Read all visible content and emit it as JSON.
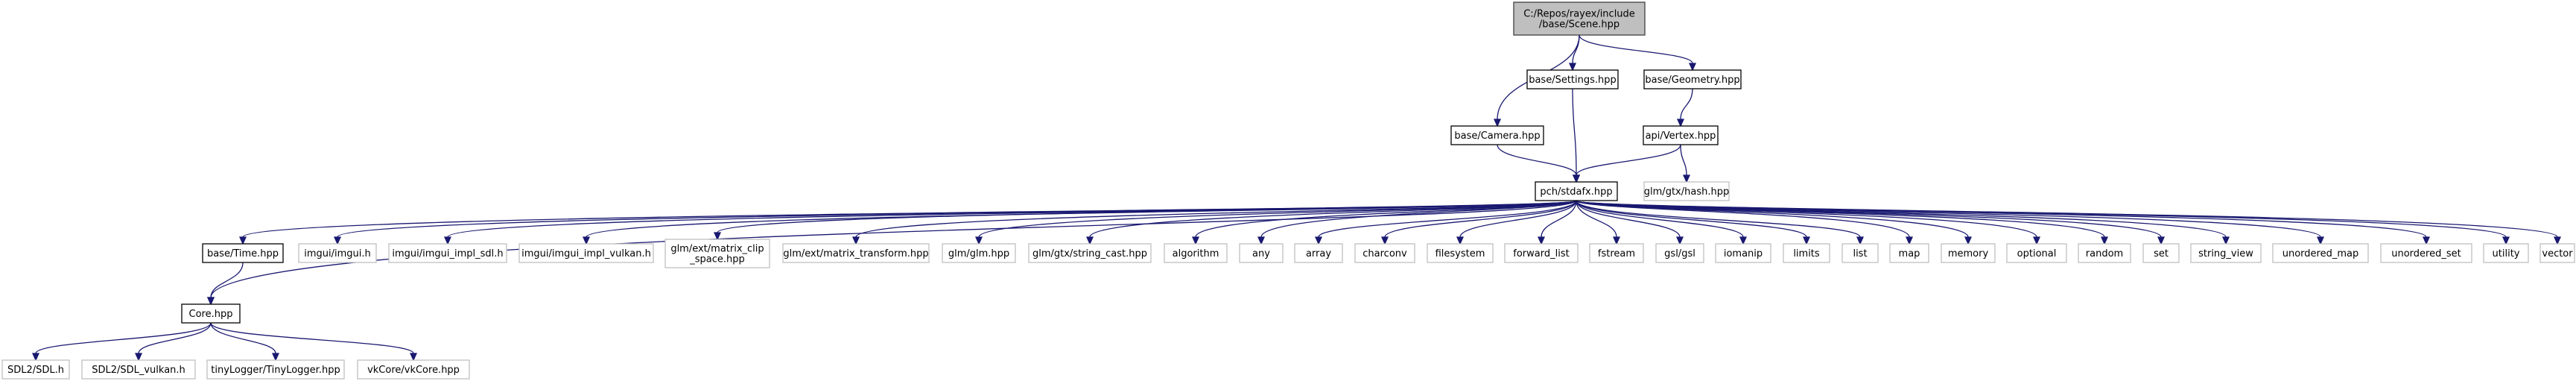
{
  "colors": {
    "edge": "#191970",
    "root_fill": "#bfbfbf",
    "root_border": "#404040",
    "documented_border": "#000000",
    "undocumented_border": "#bfbfbf",
    "node_fill": "#ffffff"
  },
  "nodes": [
    {
      "id": "scene",
      "label": [
        "C:/Repos/rayex/include",
        "/base/Scene.hpp"
      ],
      "style": "root"
    },
    {
      "id": "camera",
      "label": [
        "base/Camera.hpp"
      ],
      "style": "documented"
    },
    {
      "id": "settings",
      "label": [
        "base/Settings.hpp"
      ],
      "style": "documented"
    },
    {
      "id": "geometry",
      "label": [
        "base/Geometry.hpp"
      ],
      "style": "documented"
    },
    {
      "id": "vertex",
      "label": [
        "api/Vertex.hpp"
      ],
      "style": "documented"
    },
    {
      "id": "hash",
      "label": [
        "glm/gtx/hash.hpp"
      ],
      "style": "external"
    },
    {
      "id": "stdafx",
      "label": [
        "pch/stdafx.hpp"
      ],
      "style": "documented"
    },
    {
      "id": "time",
      "label": [
        "base/Time.hpp"
      ],
      "style": "documented"
    },
    {
      "id": "imgui",
      "label": [
        "imgui/imgui.h"
      ],
      "style": "external"
    },
    {
      "id": "imgui_sdl",
      "label": [
        "imgui/imgui_impl_sdl.h"
      ],
      "style": "external"
    },
    {
      "id": "imgui_vulkan",
      "label": [
        "imgui/imgui_impl_vulkan.h"
      ],
      "style": "external"
    },
    {
      "id": "matrix_clip",
      "label": [
        "glm/ext/matrix_clip",
        "_space.hpp"
      ],
      "style": "external"
    },
    {
      "id": "matrix_transform",
      "label": [
        "glm/ext/matrix_transform.hpp"
      ],
      "style": "external"
    },
    {
      "id": "glm",
      "label": [
        "glm/glm.hpp"
      ],
      "style": "external"
    },
    {
      "id": "string_cast",
      "label": [
        "glm/gtx/string_cast.hpp"
      ],
      "style": "external"
    },
    {
      "id": "algorithm",
      "label": [
        "algorithm"
      ],
      "style": "external"
    },
    {
      "id": "any",
      "label": [
        "any"
      ],
      "style": "external"
    },
    {
      "id": "array",
      "label": [
        "array"
      ],
      "style": "external"
    },
    {
      "id": "charconv",
      "label": [
        "charconv"
      ],
      "style": "external"
    },
    {
      "id": "filesystem",
      "label": [
        "filesystem"
      ],
      "style": "external"
    },
    {
      "id": "forward_list",
      "label": [
        "forward_list"
      ],
      "style": "external"
    },
    {
      "id": "fstream",
      "label": [
        "fstream"
      ],
      "style": "external"
    },
    {
      "id": "gsl",
      "label": [
        "gsl/gsl"
      ],
      "style": "external"
    },
    {
      "id": "iomanip",
      "label": [
        "iomanip"
      ],
      "style": "external"
    },
    {
      "id": "limits",
      "label": [
        "limits"
      ],
      "style": "external"
    },
    {
      "id": "list",
      "label": [
        "list"
      ],
      "style": "external"
    },
    {
      "id": "map",
      "label": [
        "map"
      ],
      "style": "external"
    },
    {
      "id": "memory",
      "label": [
        "memory"
      ],
      "style": "external"
    },
    {
      "id": "optional",
      "label": [
        "optional"
      ],
      "style": "external"
    },
    {
      "id": "random",
      "label": [
        "random"
      ],
      "style": "external"
    },
    {
      "id": "set",
      "label": [
        "set"
      ],
      "style": "external"
    },
    {
      "id": "string_view",
      "label": [
        "string_view"
      ],
      "style": "external"
    },
    {
      "id": "unordered_map",
      "label": [
        "unordered_map"
      ],
      "style": "external"
    },
    {
      "id": "unordered_set",
      "label": [
        "unordered_set"
      ],
      "style": "external"
    },
    {
      "id": "utility",
      "label": [
        "utility"
      ],
      "style": "external"
    },
    {
      "id": "vector",
      "label": [
        "vector"
      ],
      "style": "external"
    },
    {
      "id": "core",
      "label": [
        "Core.hpp"
      ],
      "style": "documented"
    },
    {
      "id": "sdl",
      "label": [
        "SDL2/SDL.h"
      ],
      "style": "external"
    },
    {
      "id": "sdl_vulkan",
      "label": [
        "SDL2/SDL_vulkan.h"
      ],
      "style": "external"
    },
    {
      "id": "tinylogger",
      "label": [
        "tinyLogger/TinyLogger.hpp"
      ],
      "style": "external"
    },
    {
      "id": "vkcore",
      "label": [
        "vkCore/vkCore.hpp"
      ],
      "style": "external"
    }
  ],
  "edges": [
    [
      "scene",
      "camera"
    ],
    [
      "scene",
      "settings"
    ],
    [
      "scene",
      "geometry"
    ],
    [
      "geometry",
      "vertex"
    ],
    [
      "vertex",
      "stdafx"
    ],
    [
      "vertex",
      "hash"
    ],
    [
      "camera",
      "stdafx"
    ],
    [
      "settings",
      "stdafx"
    ],
    [
      "stdafx",
      "time"
    ],
    [
      "stdafx",
      "core"
    ],
    [
      "stdafx",
      "imgui"
    ],
    [
      "stdafx",
      "imgui_sdl"
    ],
    [
      "stdafx",
      "imgui_vulkan"
    ],
    [
      "stdafx",
      "matrix_clip"
    ],
    [
      "stdafx",
      "matrix_transform"
    ],
    [
      "stdafx",
      "glm"
    ],
    [
      "stdafx",
      "string_cast"
    ],
    [
      "stdafx",
      "algorithm"
    ],
    [
      "stdafx",
      "any"
    ],
    [
      "stdafx",
      "array"
    ],
    [
      "stdafx",
      "charconv"
    ],
    [
      "stdafx",
      "filesystem"
    ],
    [
      "stdafx",
      "forward_list"
    ],
    [
      "stdafx",
      "fstream"
    ],
    [
      "stdafx",
      "gsl"
    ],
    [
      "stdafx",
      "iomanip"
    ],
    [
      "stdafx",
      "limits"
    ],
    [
      "stdafx",
      "list"
    ],
    [
      "stdafx",
      "map"
    ],
    [
      "stdafx",
      "memory"
    ],
    [
      "stdafx",
      "optional"
    ],
    [
      "stdafx",
      "random"
    ],
    [
      "stdafx",
      "set"
    ],
    [
      "stdafx",
      "string_view"
    ],
    [
      "stdafx",
      "unordered_map"
    ],
    [
      "stdafx",
      "unordered_set"
    ],
    [
      "stdafx",
      "utility"
    ],
    [
      "stdafx",
      "vector"
    ],
    [
      "time",
      "core"
    ],
    [
      "core",
      "sdl"
    ],
    [
      "core",
      "sdl_vulkan"
    ],
    [
      "core",
      "tinylogger"
    ],
    [
      "core",
      "vkcore"
    ]
  ]
}
